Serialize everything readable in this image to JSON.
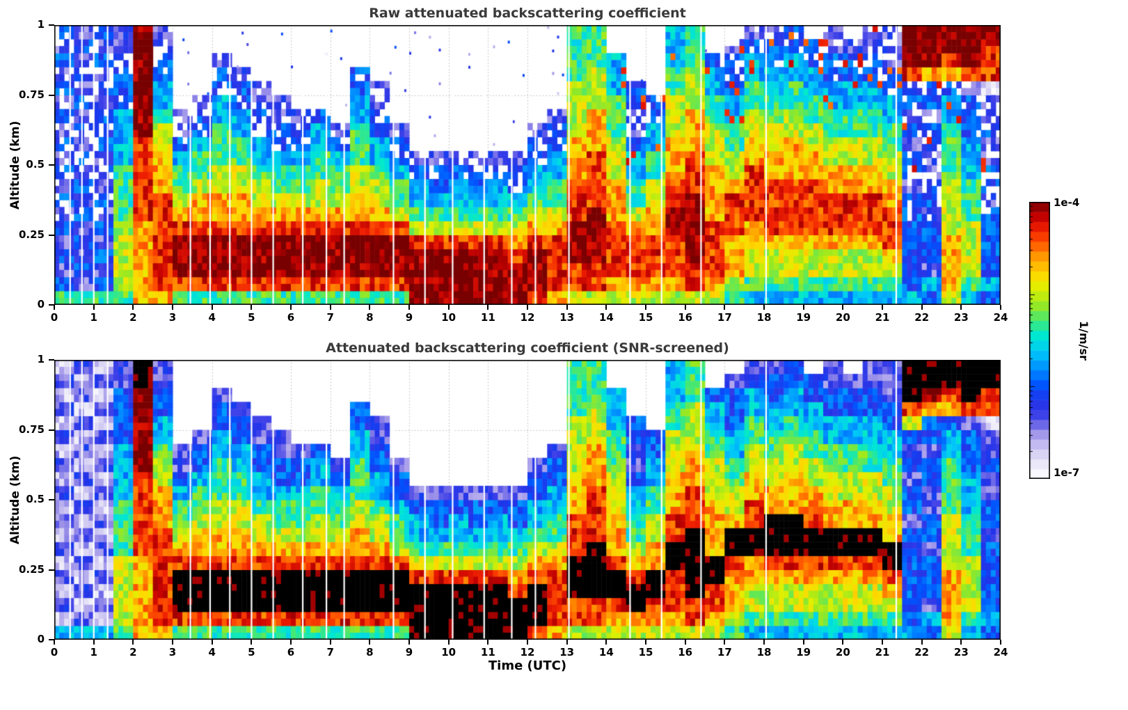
{
  "figure": {
    "background": "#ffffff",
    "panels": [
      {
        "title": "Raw attenuated backscattering coefficient",
        "ylabel": "Altitude (km)",
        "xlabel": "",
        "yticks": [
          0,
          0.25,
          0.5,
          0.75,
          1
        ],
        "ytick_labels": [
          "0",
          "0.25",
          "0.5",
          "0.75",
          "1"
        ],
        "xtick_labels": [
          "0",
          "1",
          "2",
          "3",
          "4",
          "5",
          "6",
          "7",
          "8",
          "9",
          "10",
          "11",
          "12",
          "13",
          "14",
          "15",
          "16",
          "17",
          "18",
          "19",
          "20",
          "21",
          "22",
          "23",
          "24"
        ]
      },
      {
        "title": "Attenuated backscattering coefficient (SNR-screened)",
        "ylabel": "Altitude (km)",
        "xlabel": "Time (UTC)",
        "yticks": [
          0,
          0.25,
          0.5,
          0.75,
          1
        ],
        "ytick_labels": [
          "0",
          "0.25",
          "0.5",
          "0.75",
          "1"
        ],
        "xtick_labels": [
          "0",
          "1",
          "2",
          "3",
          "4",
          "5",
          "6",
          "7",
          "8",
          "9",
          "10",
          "11",
          "12",
          "13",
          "14",
          "15",
          "16",
          "17",
          "18",
          "19",
          "20",
          "21",
          "22",
          "23",
          "24"
        ]
      }
    ],
    "colorbar": {
      "top_label": "1e-4",
      "bottom_label": "1e-7",
      "axis_label": "1/m/sr",
      "scale": "log",
      "stops": [
        {
          "v": 0.0,
          "c": "#ffffff"
        },
        {
          "v": 0.05,
          "c": "#eceaf8"
        },
        {
          "v": 0.11,
          "c": "#cfc8f2"
        },
        {
          "v": 0.17,
          "c": "#9b90e8"
        },
        {
          "v": 0.22,
          "c": "#4444e8"
        },
        {
          "v": 0.28,
          "c": "#2233e8"
        },
        {
          "v": 0.34,
          "c": "#0055ff"
        },
        {
          "v": 0.4,
          "c": "#0090ff"
        },
        {
          "v": 0.46,
          "c": "#00c8f8"
        },
        {
          "v": 0.52,
          "c": "#00e8d0"
        },
        {
          "v": 0.57,
          "c": "#40e878"
        },
        {
          "v": 0.63,
          "c": "#9ae820"
        },
        {
          "v": 0.69,
          "c": "#e0f000"
        },
        {
          "v": 0.74,
          "c": "#ffd800"
        },
        {
          "v": 0.8,
          "c": "#ff9c00"
        },
        {
          "v": 0.85,
          "c": "#ff5800"
        },
        {
          "v": 0.9,
          "c": "#f02000"
        },
        {
          "v": 0.95,
          "c": "#c00000"
        },
        {
          "v": 1.0,
          "c": "#780000"
        }
      ]
    }
  },
  "chart_data": [
    {
      "type": "heatmap",
      "title": "Raw attenuated backscattering coefficient",
      "xlabel": "Time (UTC)",
      "ylabel": "Altitude (km)",
      "x_range_hours_utc": [
        0,
        24
      ],
      "y_range_km": [
        0,
        1
      ],
      "value_units": "1/m/sr",
      "value_range": [
        "1e-7",
        "1e-4"
      ],
      "color_scale": "log; white -> lavender -> blue -> cyan -> green -> yellow -> orange -> red -> dark red",
      "grid_encoding": "48 half-hour columns x 20 altitude rows (bottom-to-top, 0.05 km each); '.' = below scale (white), digits 0-9 = log intensity from 1e-7 to 1e-4, 'K' = black (saturated/flagged)",
      "noise_speckles": true,
      "gaps_hours": [
        0.4,
        0.7,
        1.0,
        1.35,
        3.45,
        3.95,
        4.45,
        5.0,
        5.55,
        6.3,
        6.9,
        7.35,
        8.6,
        9.4,
        10.1,
        10.9,
        11.6,
        12.2,
        13.05,
        14.6,
        15.4,
        16.4,
        18.05,
        21.35
      ],
      "grid": [
        "53232323232323232323",
        "52323232323232323232",
        "53232323232323232323",
        "56666655554444333322",
        "77777788888899999999",
        "78888888777665443322",
        "58999876554322......",
        "589998776554332.....",
        "589998776655544332..",
        "58999877665544332...",
        "5899987665443322....",
        "589998765543322.....",
        "58999876554332......",
        "58999876655443......",
        "5899987655432.......",
        "58999877665554433...",
        "5899987665443322....",
        "5899986554332.......",
        "99998654432.........",
        "99998654332.........",
        "99998654432.........",
        "99998654332.........",
        "99998654432.........",
        "99987654332.........",
        "8999876544332.......",
        "78888765544332......",
        "68899988877766665555",
        "68899998888777666555",
        "678888777666555444..",
        "6788876554432233....",
        "678887766554433.....",
        "67888998877766655444",
        "68899999888777666555",
        "678888777766655443..",
        "5677788876655443332.",
        "45667788887766554432",
        "45667888877665544332",
        "45667888877766554433",
        "4566788887766554433.",
        "45667888776655443322",
        "4566788877665544332.",
        "45667888776655443322",
        "45678887766554433222",
        "43333333233232328999",
        "34233323322332337999",
        "67777666655554437899",
        "45666655544433328999",
        "34333332332232218889"
      ]
    },
    {
      "type": "heatmap",
      "title": "Attenuated backscattering coefficient (SNR-screened)",
      "xlabel": "Time (UTC)",
      "ylabel": "Altitude (km)",
      "x_range_hours_utc": [
        0,
        24
      ],
      "y_range_km": [
        0,
        1
      ],
      "value_units": "1/m/sr",
      "value_range": [
        "1e-7",
        "1e-4"
      ],
      "color_scale": "log; white -> lavender -> blue -> cyan -> green -> yellow -> orange -> red -> dark red; black = flagged/saturated",
      "grid_encoding": "48 half-hour columns x 20 altitude rows (bottom-to-top, 0.05 km each); '.' = screened out (white), digits 0-9 = log intensity from 1e-7 to 1e-4, 'K' = black (saturated/flagged)",
      "noise_speckles": false,
      "gaps_hours": [
        0.4,
        0.7,
        1.0,
        1.35,
        3.45,
        3.95,
        4.45,
        5.0,
        5.55,
        6.3,
        6.9,
        7.35,
        8.6,
        9.4,
        10.1,
        10.9,
        11.6,
        12.2,
        13.05,
        14.6,
        15.4,
        16.4,
        18.05,
        21.35
      ],
      "grid": [
        "41212121212121212121",
        "42121212121212121212",
        "41212121212121212121",
        "56666655554444333322",
        "777777888888999999KK",
        "78888888777665443322",
        "58KKK876554322......",
        "58KKK8776554332.....",
        "58KKK8776655544332..",
        "58KKK877665544332...",
        "58KKK87665443322....",
        "58KKK8765543322.....",
        "58KKK876554332......",
        "58KKK876655443......",
        "58KKK87655432.......",
        "58KKK877665554433...",
        "58KKK87665443322....",
        "58KKK86554332.......",
        "KKKK8654432.........",
        "KKKK8654332.........",
        "KKKK8654432.........",
        "KKKK8654332.........",
        "KKKK8654432.........",
        "KKK87654332.........",
        "8KKK876544332.......",
        "78888765544332......",
        "688KKK88877766665555",
        "688KKKK8888777666555",
        "678KK8777666555444..",
        "67KK876554432233....",
        "678KK7766554433.....",
        "67888KK8877766655444",
        "688KKKKK888777666555",
        "6788KK777766655443..",
        "567778KK76655443332.",
        "456677KK887766554432",
        "456678KKK77665544332",
        "456678KKK77766554433",
        "456678KK87766554433.",
        "456678KK776655443322",
        "456678KK77665544332.",
        "456678KK776655443322",
        "45678KK7766554433222",
        "43333333233232368KKK",
        "342333233223323379KK",
        "677776666555544378KK",
        "45666655544433328KKK",
        "343333323322322188KK"
      ]
    }
  ]
}
